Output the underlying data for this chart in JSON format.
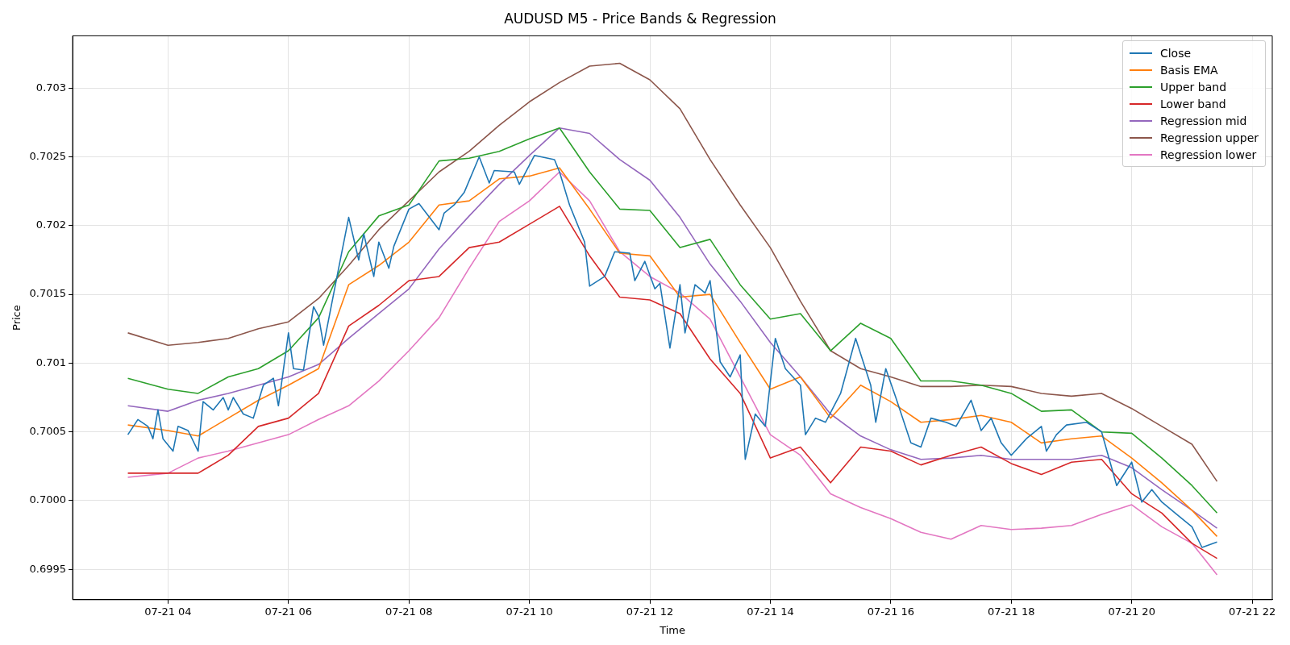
{
  "chart_data": {
    "type": "line",
    "title": "AUDUSD M5 - Price Bands & Regression",
    "xlabel": "Time",
    "ylabel": "Price",
    "xlim": [
      "--07-21T02:25",
      "--07-21T22:20"
    ],
    "ylim": [
      0.69928,
      0.70338
    ],
    "xticks": [
      {
        "value": "--07-21T04:00",
        "label": "07-21 04"
      },
      {
        "value": "--07-21T06:00",
        "label": "07-21 06"
      },
      {
        "value": "--07-21T08:00",
        "label": "07-21 08"
      },
      {
        "value": "--07-21T10:00",
        "label": "07-21 10"
      },
      {
        "value": "--07-21T12:00",
        "label": "07-21 12"
      },
      {
        "value": "--07-21T14:00",
        "label": "07-21 14"
      },
      {
        "value": "--07-21T16:00",
        "label": "07-21 16"
      },
      {
        "value": "--07-21T18:00",
        "label": "07-21 18"
      },
      {
        "value": "--07-21T20:00",
        "label": "07-21 20"
      },
      {
        "value": "--07-21T22:00",
        "label": "07-21 22"
      }
    ],
    "yticks": [
      0.6995,
      {
        "value": 0.7,
        "label": "0.7000"
      },
      0.7005,
      0.701,
      0.7015,
      0.702,
      0.7025,
      0.703
    ],
    "grid": true,
    "legend": "top right",
    "marker": "none",
    "line_style": "solid",
    "x": [
      "--07-21T03:20",
      "--07-21T04:00",
      "--07-21T04:30",
      "--07-21T05:00",
      "--07-21T05:30",
      "--07-21T06:00",
      "--07-21T06:30",
      "--07-21T07:00",
      "--07-21T07:30",
      "--07-21T08:00",
      "--07-21T08:30",
      "--07-21T09:00",
      "--07-21T09:30",
      "--07-21T10:00",
      "--07-21T10:30",
      "--07-21T11:00",
      "--07-21T11:30",
      "--07-21T12:00",
      "--07-21T12:30",
      "--07-21T13:00",
      "--07-21T13:30",
      "--07-21T14:00",
      "--07-21T14:30",
      "--07-21T15:00",
      "--07-21T15:30",
      "--07-21T16:00",
      "--07-21T16:30",
      "--07-21T17:00",
      "--07-21T17:30",
      "--07-21T18:00",
      "--07-21T18:30",
      "--07-21T19:00",
      "--07-21T19:30",
      "--07-21T20:00",
      "--07-21T20:30",
      "--07-21T21:00",
      "--07-21T21:25"
    ],
    "series": [
      {
        "name": "Close",
        "color": "#1f77b4",
        "x": [
          "--07-21T03:20",
          "--07-21T03:30",
          "--07-21T03:40",
          "--07-21T03:45",
          "--07-21T03:50",
          "--07-21T03:55",
          "--07-21T04:05",
          "--07-21T04:10",
          "--07-21T04:20",
          "--07-21T04:30",
          "--07-21T04:35",
          "--07-21T04:45",
          "--07-21T04:55",
          "--07-21T05:00",
          "--07-21T05:05",
          "--07-21T05:15",
          "--07-21T05:25",
          "--07-21T05:35",
          "--07-21T05:45",
          "--07-21T05:50",
          "--07-21T06:00",
          "--07-21T06:05",
          "--07-21T06:15",
          "--07-21T06:25",
          "--07-21T06:30",
          "--07-21T06:35",
          "--07-21T06:50",
          "--07-21T07:00",
          "--07-21T07:10",
          "--07-21T07:15",
          "--07-21T07:25",
          "--07-21T07:30",
          "--07-21T07:40",
          "--07-21T07:45",
          "--07-21T08:00",
          "--07-21T08:10",
          "--07-21T08:30",
          "--07-21T08:35",
          "--07-21T08:45",
          "--07-21T08:55",
          "--07-21T09:10",
          "--07-21T09:20",
          "--07-21T09:25",
          "--07-21T09:45",
          "--07-21T09:50",
          "--07-21T10:05",
          "--07-21T10:25",
          "--07-21T10:30",
          "--07-21T10:40",
          "--07-21T10:55",
          "--07-21T11:00",
          "--07-21T11:15",
          "--07-21T11:25",
          "--07-21T11:40",
          "--07-21T11:45",
          "--07-21T11:55",
          "--07-21T12:05",
          "--07-21T12:10",
          "--07-21T12:20",
          "--07-21T12:30",
          "--07-21T12:35",
          "--07-21T12:45",
          "--07-21T12:55",
          "--07-21T13:00",
          "--07-21T13:10",
          "--07-21T13:20",
          "--07-21T13:30",
          "--07-21T13:35",
          "--07-21T13:45",
          "--07-21T13:55",
          "--07-21T14:05",
          "--07-21T14:15",
          "--07-21T14:30",
          "--07-21T14:35",
          "--07-21T14:45",
          "--07-21T14:55",
          "--07-21T15:10",
          "--07-21T15:25",
          "--07-21T15:40",
          "--07-21T15:45",
          "--07-21T15:55",
          "--07-21T16:05",
          "--07-21T16:20",
          "--07-21T16:30",
          "--07-21T16:40",
          "--07-21T16:55",
          "--07-21T17:05",
          "--07-21T17:20",
          "--07-21T17:30",
          "--07-21T17:40",
          "--07-21T17:50",
          "--07-21T18:00",
          "--07-21T18:15",
          "--07-21T18:30",
          "--07-21T18:35",
          "--07-21T18:45",
          "--07-21T18:55",
          "--07-21T19:15",
          "--07-21T19:30",
          "--07-21T19:45",
          "--07-21T20:00",
          "--07-21T20:10",
          "--07-21T20:20",
          "--07-21T20:30",
          "--07-21T20:45",
          "--07-21T21:00",
          "--07-21T21:10",
          "--07-21T21:25"
        ],
        "values": [
          0.70048,
          0.70059,
          0.70054,
          0.70045,
          0.70066,
          0.70045,
          0.70036,
          0.70054,
          0.70051,
          0.70036,
          0.70072,
          0.70066,
          0.70075,
          0.70066,
          0.70075,
          0.70063,
          0.7006,
          0.70084,
          0.70089,
          0.70069,
          0.70122,
          0.70096,
          0.70095,
          0.70141,
          0.70134,
          0.70113,
          0.70169,
          0.70206,
          0.70175,
          0.70194,
          0.70163,
          0.70188,
          0.70169,
          0.70185,
          0.70212,
          0.70216,
          0.70197,
          0.70209,
          0.70215,
          0.70224,
          0.7025,
          0.70231,
          0.7024,
          0.70239,
          0.7023,
          0.70251,
          0.70248,
          0.70239,
          0.70215,
          0.70188,
          0.70156,
          0.70163,
          0.70181,
          0.7018,
          0.7016,
          0.70174,
          0.70154,
          0.70158,
          0.70111,
          0.70157,
          0.70122,
          0.70157,
          0.70151,
          0.7016,
          0.70101,
          0.7009,
          0.70106,
          0.7003,
          0.70063,
          0.70054,
          0.70118,
          0.70096,
          0.70084,
          0.70048,
          0.7006,
          0.70057,
          0.70078,
          0.70118,
          0.70084,
          0.70057,
          0.70096,
          0.70075,
          0.70042,
          0.70039,
          0.7006,
          0.70057,
          0.70054,
          0.70073,
          0.70051,
          0.7006,
          0.70042,
          0.70033,
          0.70045,
          0.70054,
          0.70036,
          0.70048,
          0.70055,
          0.70057,
          0.7005,
          0.70011,
          0.70028,
          0.69999,
          0.70008,
          0.69999,
          0.6999,
          0.69981,
          0.69966,
          0.6997
        ]
      },
      {
        "name": "Basis EMA",
        "color": "#ff7f0e",
        "values": [
          0.70055,
          0.70051,
          0.70047,
          0.7006,
          0.70073,
          0.70084,
          0.70096,
          0.70157,
          0.70171,
          0.70188,
          0.70215,
          0.70218,
          0.70234,
          0.70236,
          0.70242,
          0.70212,
          0.7018,
          0.70178,
          0.70148,
          0.7015,
          0.70115,
          0.70081,
          0.7009,
          0.7006,
          0.70084,
          0.70072,
          0.70057,
          0.70059,
          0.70062,
          0.70057,
          0.70042,
          0.70045,
          0.70047,
          0.70031,
          0.70013,
          0.69993,
          0.69974
        ]
      },
      {
        "name": "Upper band",
        "color": "#2ca02c",
        "values": [
          0.70089,
          0.70081,
          0.70078,
          0.7009,
          0.70096,
          0.70109,
          0.70133,
          0.70181,
          0.70207,
          0.70215,
          0.70247,
          0.70249,
          0.70254,
          0.70263,
          0.70271,
          0.70239,
          0.70212,
          0.70211,
          0.70184,
          0.7019,
          0.70157,
          0.70132,
          0.70136,
          0.70109,
          0.70129,
          0.70118,
          0.70087,
          0.70087,
          0.70084,
          0.70078,
          0.70065,
          0.70066,
          0.7005,
          0.70049,
          0.70031,
          0.70011,
          0.69991
        ]
      },
      {
        "name": "Lower band",
        "color": "#d62728",
        "values": [
          0.7002,
          0.7002,
          0.7002,
          0.70033,
          0.70054,
          0.7006,
          0.70078,
          0.70127,
          0.70142,
          0.7016,
          0.70163,
          0.70184,
          0.70188,
          0.70201,
          0.70214,
          0.70178,
          0.70148,
          0.70146,
          0.70136,
          0.70103,
          0.70078,
          0.70031,
          0.70039,
          0.70013,
          0.70039,
          0.70036,
          0.70026,
          0.70033,
          0.70039,
          0.70027,
          0.70019,
          0.70028,
          0.7003,
          0.70005,
          0.69991,
          0.69969,
          0.69958
        ]
      },
      {
        "name": "Regression mid",
        "color": "#9467bd",
        "values": [
          0.70069,
          0.70065,
          0.70073,
          0.70078,
          0.70084,
          0.7009,
          0.70099,
          0.70118,
          0.70136,
          0.70154,
          0.70183,
          0.70207,
          0.7023,
          0.70251,
          0.70271,
          0.70267,
          0.70248,
          0.70233,
          0.70206,
          0.70172,
          0.70145,
          0.70115,
          0.7009,
          0.70063,
          0.70047,
          0.70037,
          0.7003,
          0.70031,
          0.70033,
          0.7003,
          0.7003,
          0.7003,
          0.70033,
          0.70024,
          0.70008,
          0.69993,
          0.6998
        ]
      },
      {
        "name": "Regression upper",
        "color": "#8c564b",
        "values": [
          0.70122,
          0.70113,
          0.70115,
          0.70118,
          0.70125,
          0.7013,
          0.70147,
          0.70171,
          0.70197,
          0.70218,
          0.70239,
          0.70254,
          0.70273,
          0.7029,
          0.70304,
          0.70316,
          0.70318,
          0.70306,
          0.70285,
          0.70248,
          0.70215,
          0.70184,
          0.70145,
          0.70109,
          0.70096,
          0.7009,
          0.70083,
          0.70083,
          0.70084,
          0.70083,
          0.70078,
          0.70076,
          0.70078,
          0.70067,
          0.70054,
          0.70041,
          0.70014
        ]
      },
      {
        "name": "Regression lower",
        "color": "#e377c2",
        "values": [
          0.70017,
          0.7002,
          0.70031,
          0.70036,
          0.70042,
          0.70048,
          0.70059,
          0.70069,
          0.70087,
          0.70109,
          0.70133,
          0.70169,
          0.70203,
          0.70218,
          0.70239,
          0.70218,
          0.70181,
          0.70163,
          0.70151,
          0.70132,
          0.7009,
          0.70048,
          0.70033,
          0.70005,
          0.69995,
          0.69987,
          0.69977,
          0.69972,
          0.69982,
          0.69979,
          0.6998,
          0.69982,
          0.6999,
          0.69997,
          0.69981,
          0.69969,
          0.69946
        ]
      }
    ]
  }
}
